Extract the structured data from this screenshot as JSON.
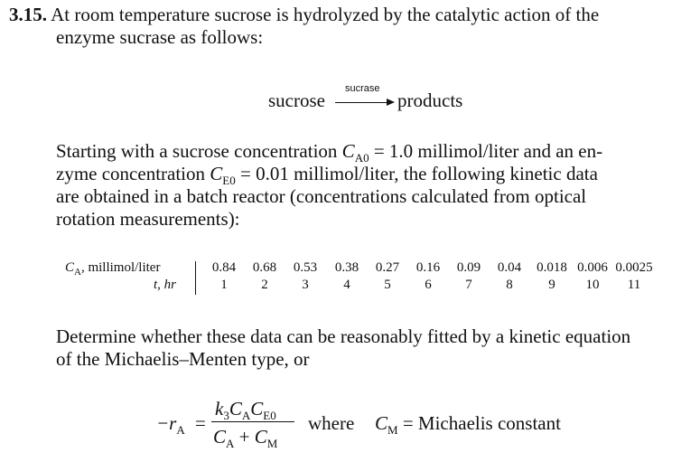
{
  "problem": {
    "number": "3.15.",
    "intro_line1": "At room temperature sucrose is hydrolyzed by the catalytic action of the",
    "intro_line2": "enzyme sucrase as follows:"
  },
  "reaction": {
    "reactant": "sucrose",
    "catalyst": "sucrase",
    "product": "products"
  },
  "paragraph2": {
    "l1_a": "Starting with a sucrose concentration",
    "l1_var": "C",
    "l1_sub": "A0",
    "l1_b": "= 1.0 millimol/liter and an en-",
    "l2_a": "zyme concentration",
    "l2_var": "C",
    "l2_sub": "E0",
    "l2_b": "= 0.01 millimol/liter, the following kinetic data",
    "l3": "are obtained in a batch reactor (concentrations calculated from optical",
    "l4": "rotation measurements):"
  },
  "table": {
    "row1_label_var": "C",
    "row1_label_sub": "A",
    "row1_label_rest": ", millimol/liter",
    "row2_label": "t, hr",
    "ca_values": [
      "0.84",
      "0.68",
      "0.53",
      "0.38",
      "0.27",
      "0.16",
      "0.09",
      "0.04",
      "0.018",
      "0.006",
      "0.0025"
    ],
    "t_values": [
      "1",
      "2",
      "3",
      "4",
      "5",
      "6",
      "7",
      "8",
      "9",
      "10",
      "11"
    ]
  },
  "paragraph3": {
    "l1": "Determine whether these data can be reasonably fitted by a kinetic equation",
    "l2": "of the Michaelis–Menten type, or"
  },
  "equation": {
    "lhs_prefix": "−r",
    "lhs_sub": "A",
    "equals": "=",
    "num_k": "k",
    "num_k_sub": "3",
    "num_c1": "C",
    "num_c1_sub": "A",
    "num_c2": "C",
    "num_c2_sub": "E0",
    "den_c1": "C",
    "den_c1_sub": "A",
    "den_plus": "+",
    "den_c2": "C",
    "den_c2_sub": "M",
    "where": "where",
    "cm_var": "C",
    "cm_sub": "M",
    "cm_rest": "= Michaelis constant"
  }
}
